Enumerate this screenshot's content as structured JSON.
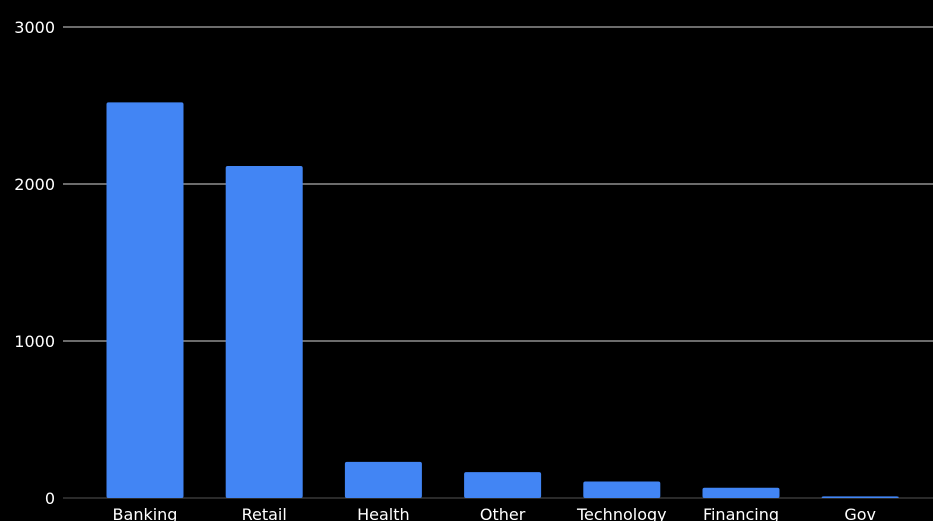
{
  "chart_data": {
    "type": "bar",
    "title": "",
    "xlabel": "",
    "ylabel": "",
    "categories": [
      "Banking",
      "Retail",
      "Health",
      "Other",
      "Technology",
      "Financing",
      "Gov"
    ],
    "values": [
      2520,
      2115,
      230,
      165,
      105,
      65,
      10
    ],
    "ylim": [
      0,
      3000
    ],
    "yticks": [
      0,
      1000,
      2000,
      3000
    ],
    "ytick_labels": [
      "0",
      "1000",
      "2000",
      "3000"
    ],
    "grid": true,
    "legend": "none"
  },
  "colors": {
    "background": "#000000",
    "bar": "#4285f4",
    "gridline": "#d9d9d9",
    "text": "#ffffff"
  }
}
